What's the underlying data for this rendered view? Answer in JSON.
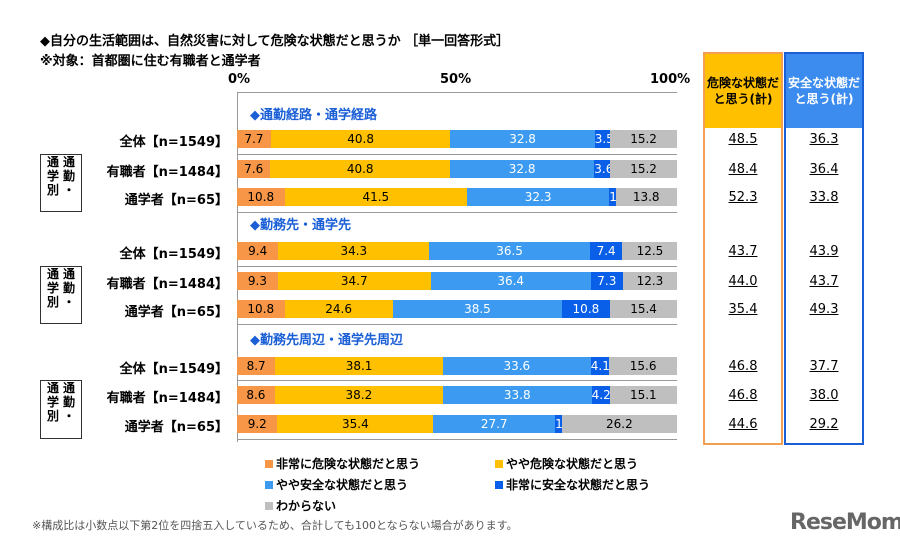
{
  "title": "◆自分の生活範囲は、自然災害に対して危険な状態だと思うか ［単一回答形式］",
  "subtitle": "※対象：首都圏に住む有職者と通学者",
  "note": "※構成比は小数点以下第2位を四捨五入しているため、合計しても100とならない場合があります。",
  "logo": "ReseMom",
  "group_label": {
    "col1": [
      "通",
      "勤",
      "・"
    ],
    "col2": [
      "通",
      "学",
      "別"
    ]
  },
  "columns": {
    "danger": "危険な状態だと思う(計)",
    "safe": "安全な状態だと思う(計)"
  },
  "colors": {
    "very_danger": "#F79646",
    "some_danger": "#FFC000",
    "some_safe": "#3C9BF0",
    "very_safe": "#0A5FE8",
    "unknown": "#BFBFBF",
    "danger_col": "#FFC000",
    "danger_border": "#F0A050",
    "safe_col": "#3C8CF0",
    "safe_border": "#1a5fd6"
  },
  "chart_data": {
    "type": "bar",
    "orientation": "horizontal",
    "stacked": true,
    "xlim": [
      0,
      100
    ],
    "ticks": [
      "0%",
      "50%",
      "100%"
    ],
    "legend": [
      "非常に危険な状態だと思う",
      "やや危険な状態だと思う",
      "やや安全な状態だと思う",
      "非常に安全な状態だと思う",
      "わからない"
    ],
    "legend_position": "bottom",
    "sections": [
      {
        "title": "◆通勤経路・通学経路",
        "rows": [
          {
            "label": "全体【n=1549】",
            "values": [
              7.7,
              40.8,
              32.8,
              3.5,
              15.2
            ],
            "danger": "48.5",
            "safe": "36.3"
          },
          {
            "label": "有職者【n=1484】",
            "values": [
              7.6,
              40.8,
              32.8,
              3.6,
              15.2
            ],
            "danger": "48.4",
            "safe": "36.4"
          },
          {
            "label": "通学者【n=65】",
            "values": [
              10.8,
              41.5,
              32.3,
              1.5,
              13.8
            ],
            "danger": "52.3",
            "safe": "33.8"
          }
        ]
      },
      {
        "title": "◆勤務先・通学先",
        "rows": [
          {
            "label": "全体【n=1549】",
            "values": [
              9.4,
              34.3,
              36.5,
              7.4,
              12.5
            ],
            "danger": "43.7",
            "safe": "43.9"
          },
          {
            "label": "有職者【n=1484】",
            "values": [
              9.3,
              34.7,
              36.4,
              7.3,
              12.3
            ],
            "danger": "44.0",
            "safe": "43.7"
          },
          {
            "label": "通学者【n=65】",
            "values": [
              10.8,
              24.6,
              38.5,
              10.8,
              15.4
            ],
            "danger": "35.4",
            "safe": "49.3"
          }
        ]
      },
      {
        "title": "◆勤務先周辺・通学先周辺",
        "rows": [
          {
            "label": "全体【n=1549】",
            "values": [
              8.7,
              38.1,
              33.6,
              4.1,
              15.6
            ],
            "danger": "46.8",
            "safe": "37.7"
          },
          {
            "label": "有職者【n=1484】",
            "values": [
              8.6,
              38.2,
              33.8,
              4.2,
              15.1
            ],
            "danger": "46.8",
            "safe": "38.0"
          },
          {
            "label": "通学者【n=65】",
            "values": [
              9.2,
              35.4,
              27.7,
              1.5,
              26.2
            ],
            "danger": "44.6",
            "safe": "29.2"
          }
        ]
      }
    ]
  }
}
